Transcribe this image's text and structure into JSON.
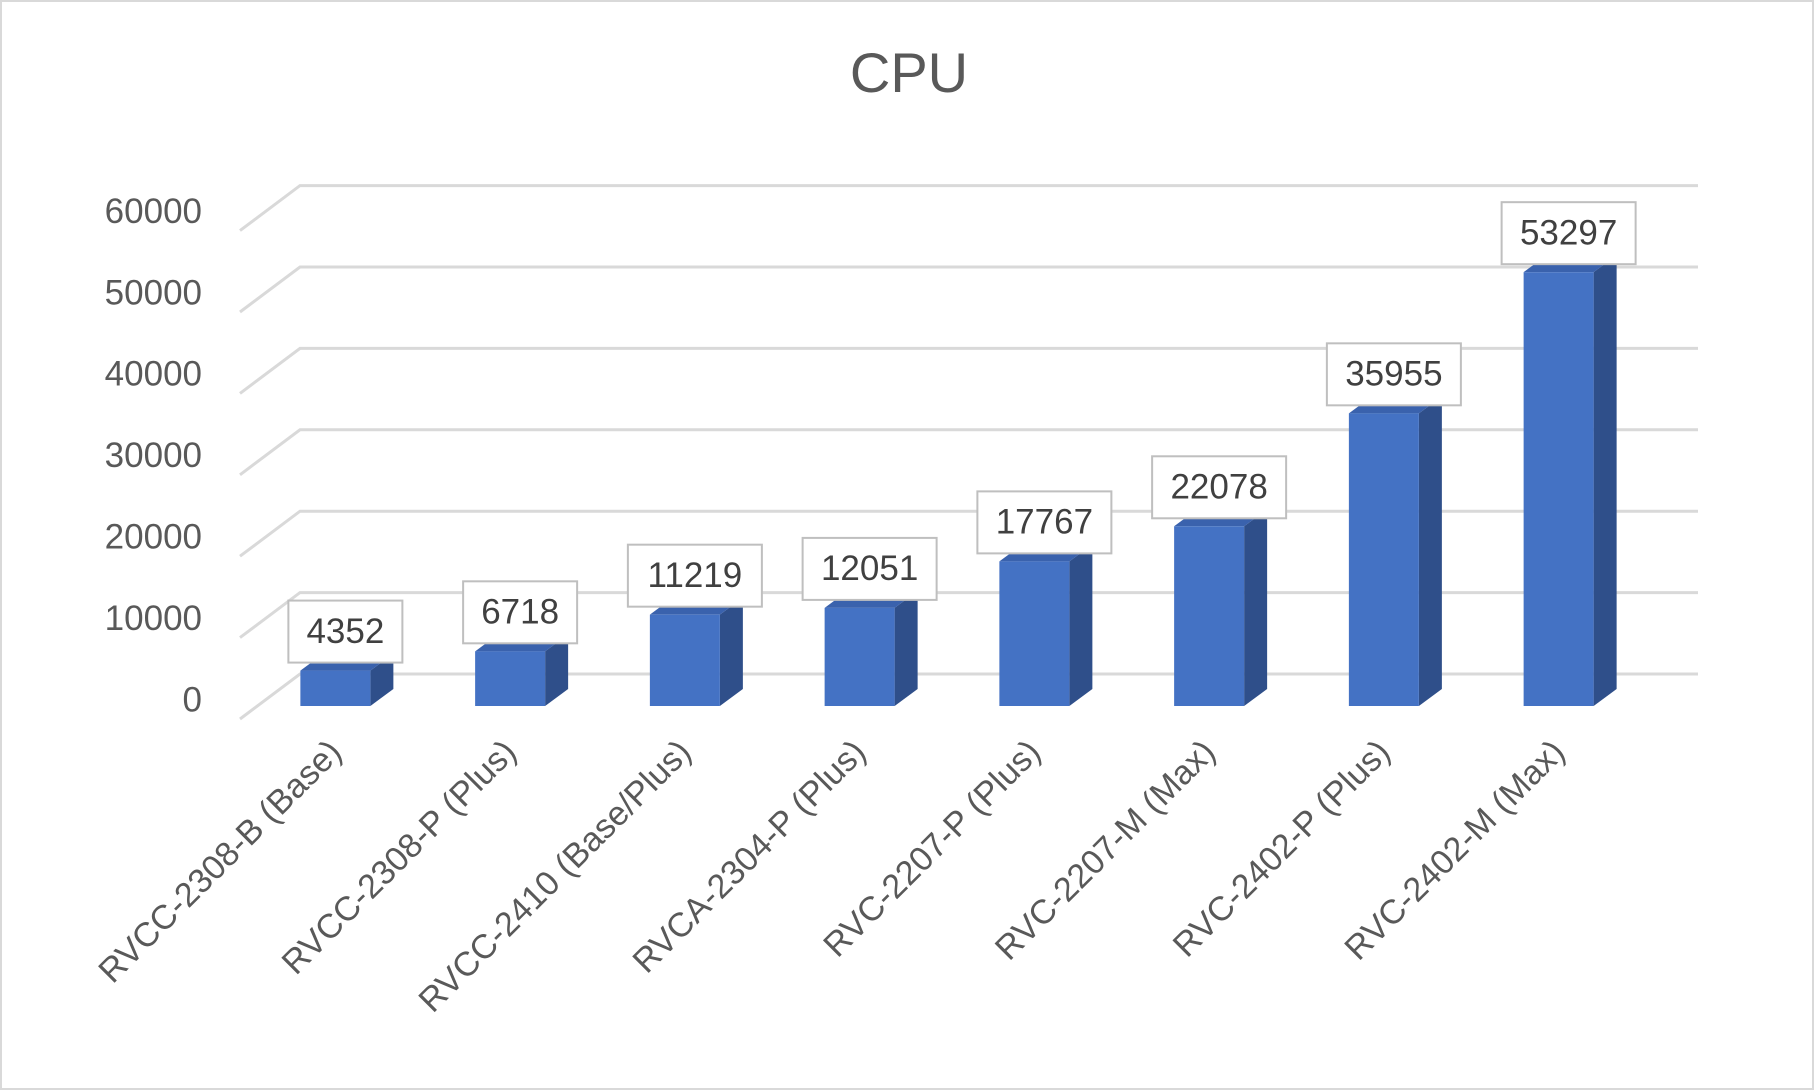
{
  "chart_data": {
    "type": "bar",
    "title": "CPU",
    "categories": [
      "RVCC-2308-B (Base)",
      "RVCC-2308-P (Plus)",
      "RVCC-2410 (Base/Plus)",
      "RVCA-2304-P (Plus)",
      "RVC-2207-P (Plus)",
      "RVC-2207-M (Max)",
      "RVC-2402-P (Plus)",
      "RVC-2402-M (Max)"
    ],
    "values": [
      4352,
      6718,
      11219,
      12051,
      17767,
      22078,
      35955,
      53297
    ],
    "ylim": [
      0,
      60000
    ],
    "yticks": [
      "0",
      "10000",
      "20000",
      "30000",
      "40000",
      "50000",
      "60000"
    ],
    "grid": true,
    "legend": "none",
    "colors": {
      "bar_front": "#4472c4",
      "bar_side": "#2f4f8a",
      "bar_top": "#3a62ad"
    }
  }
}
